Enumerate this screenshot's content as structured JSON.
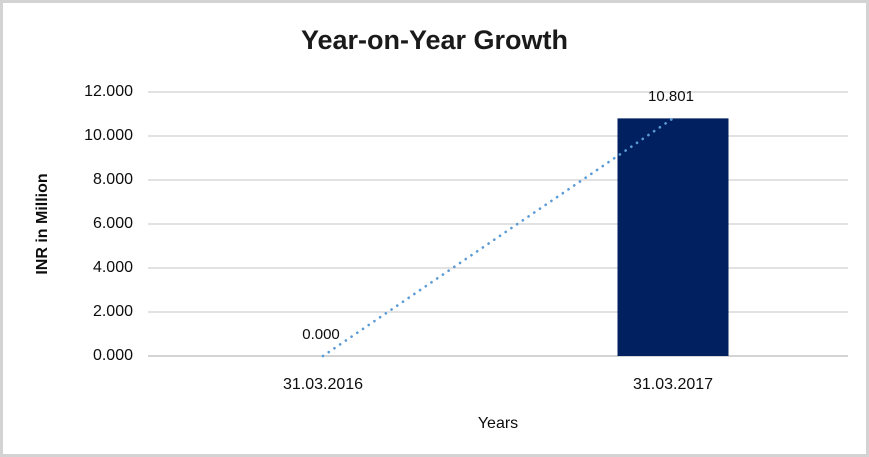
{
  "chart_data": {
    "type": "bar",
    "title": "Year-on-Year Growth",
    "xlabel": "Years",
    "ylabel": "INR in Million",
    "categories": [
      "31.03.2016",
      "31.03.2017"
    ],
    "series": [
      {
        "name": "INR in Million",
        "values": [
          0.0,
          10.801
        ]
      }
    ],
    "value_labels": [
      "0.000",
      "10.801"
    ],
    "ylim": [
      0,
      12
    ],
    "ytick_values": [
      0,
      2,
      4,
      6,
      8,
      10,
      12
    ],
    "ytick_labels": [
      "0.000",
      "2.000",
      "4.000",
      "6.000",
      "8.000",
      "10.000",
      "12.000"
    ],
    "grid": true,
    "legend": "none",
    "trendline": {
      "type": "linear",
      "style": "dotted",
      "from_value": 0.0,
      "to_value": 10.801
    },
    "colors": {
      "bar": "#002060",
      "trendline": "#5b9bd5",
      "gridline": "#d9d9d9",
      "axis_line": "#c6c6c6",
      "text": "#0d0d0d",
      "title": "#1a1a1a",
      "frame_border": "#d3d3d3",
      "background": "#ffffff"
    }
  }
}
